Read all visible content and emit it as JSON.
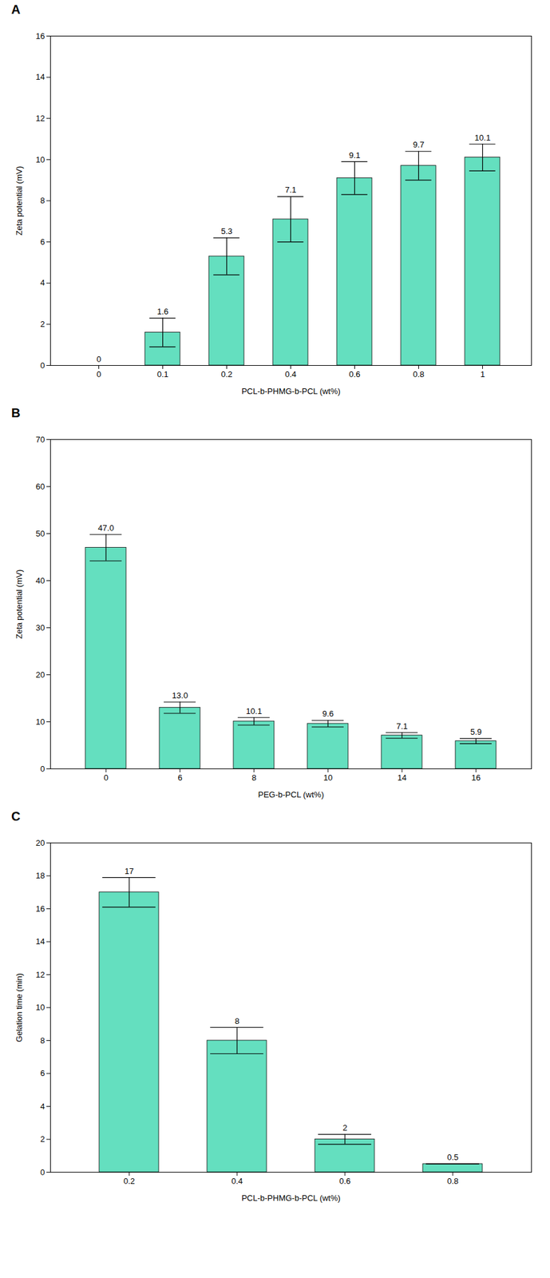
{
  "chart_data": [
    {
      "type": "bar",
      "title": "A",
      "categories": [
        "0",
        "0.1",
        "0.2",
        "0.4",
        "0.6",
        "0.8",
        "1"
      ],
      "values": [
        0,
        1.6,
        5.3,
        7.1,
        9.1,
        9.7,
        10.1
      ],
      "errors": [
        0,
        0.7,
        0.9,
        1.1,
        0.8,
        0.7,
        0.65
      ],
      "value_labels": [
        "0",
        "1.6",
        "5.3",
        "7.1",
        "9.1",
        "9.7",
        "10.1"
      ],
      "data_labels": true,
      "ylabel": "Zeta potential (mV)",
      "xlabel": "PCL-b-PHMG-b-PCL (wt%)",
      "ylim": [
        0,
        16
      ],
      "yticks": [
        0,
        2,
        4,
        6,
        8,
        10,
        12,
        14,
        16
      ],
      "color": "#64DFBF",
      "grid": false
    },
    {
      "type": "bar",
      "title": "B",
      "categories": [
        "0",
        "6",
        "8",
        "10",
        "14",
        "16"
      ],
      "values": [
        47.0,
        13.0,
        10.1,
        9.6,
        7.1,
        5.9
      ],
      "errors": [
        2.8,
        1.2,
        0.8,
        0.7,
        0.6,
        0.55
      ],
      "value_labels": [
        "47.0",
        "13.0",
        "10.1",
        "9.6",
        "7.1",
        "5.9"
      ],
      "data_labels": true,
      "ylabel": "Zeta potential (mV)",
      "xlabel": "PEG-b-PCL (wt%)",
      "ylim": [
        0,
        70
      ],
      "yticks": [
        0,
        10,
        20,
        30,
        40,
        50,
        60,
        70
      ],
      "color": "#64DFBF",
      "grid": false
    },
    {
      "type": "bar",
      "title": "C",
      "categories": [
        "0.2",
        "0.4",
        "0.6",
        "0.8"
      ],
      "values": [
        17,
        8,
        2,
        0.5
      ],
      "errors": [
        0.9,
        0.8,
        0.3,
        0.0
      ],
      "value_labels": [
        "17",
        "8",
        "2",
        "0.5"
      ],
      "data_labels": true,
      "ylabel": "Gelation time (min)",
      "xlabel": "PCL-b-PHMG-b-PCL (wt%)",
      "ylim": [
        0,
        20
      ],
      "yticks": [
        0,
        2,
        4,
        6,
        8,
        10,
        12,
        14,
        16,
        18,
        20
      ],
      "color": "#64DFBF",
      "grid": false
    }
  ]
}
